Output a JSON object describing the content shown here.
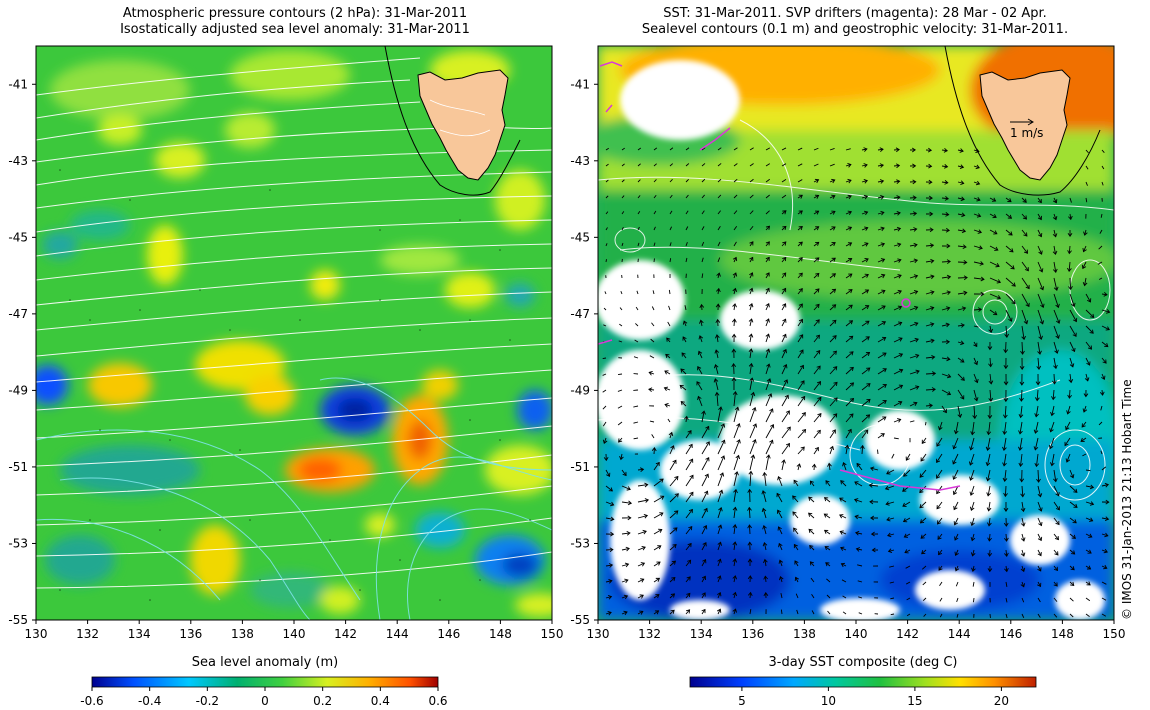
{
  "left_panel": {
    "title_line1": "Atmospheric pressure contours (2 hPa): 31-Mar-2011",
    "title_line2": "Isostatically adjusted sea level anomaly: 31-Mar-2011",
    "colorbar_title": "Sea level anomaly (m)",
    "colorbar_ticks": [
      "-0.6",
      "-0.4",
      "-0.2",
      "0",
      "0.2",
      "0.4",
      "0.6"
    ],
    "colorbar_range": [
      -0.6,
      0.6
    ]
  },
  "right_panel": {
    "title_line1": "SST: 31-Mar-2011. SVP drifters (magenta): 28 Mar - 02 Apr.",
    "title_line2": "Sealevel contours (0.1 m) and geostrophic velocity: 31-Mar-2011.",
    "colorbar_title": "3-day SST composite (deg C)",
    "colorbar_ticks": [
      "5",
      "10",
      "15",
      "20"
    ],
    "colorbar_range": [
      2,
      22
    ],
    "velocity_scale_label": "1 m/s"
  },
  "axes": {
    "lon_range": [
      130,
      150
    ],
    "lat_range": [
      -55,
      -40
    ],
    "lon_ticks": [
      "130",
      "132",
      "134",
      "136",
      "138",
      "140",
      "142",
      "144",
      "146",
      "148",
      "150"
    ],
    "lat_ticks": [
      "-41",
      "-43",
      "-45",
      "-47",
      "-49",
      "-51",
      "-53",
      "-55"
    ]
  },
  "credit": "© IMOS 31-Jan-2013 21:13 Hobart Time",
  "colors": {
    "land": "#f8c79a",
    "drifter": "#d83ad8",
    "contour": "#ffffff",
    "contour_cyan": "#7fe3e8"
  }
}
